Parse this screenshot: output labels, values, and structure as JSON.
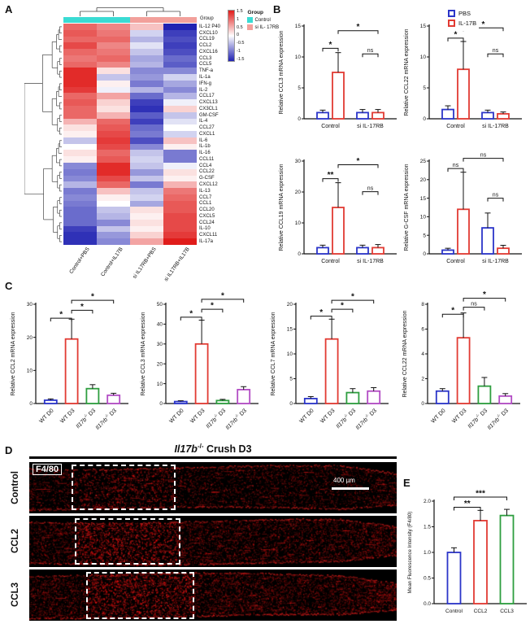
{
  "panels": {
    "a": "A",
    "b": "B",
    "c": "C",
    "d": "D",
    "e": "E"
  },
  "heatmap": {
    "genes": [
      "IL-12 P40",
      "CXCL10",
      "CCL19",
      "CCL2",
      "CXCL16",
      "CCL3",
      "CCL5",
      "TNF-a",
      "IL-1a",
      "IFN-g",
      "IL-2",
      "CCL17",
      "CXCL13",
      "CX3CL1",
      "GM-CSF",
      "IL-4",
      "CCL27",
      "CXCL1",
      "IL-6",
      "IL-1b",
      "IL-16",
      "CCL11",
      "CCL4",
      "CCL22",
      "G-CSF",
      "CXCL12",
      "IL-13",
      "CCL7",
      "CCL1",
      "CCL20",
      "CXCL5",
      "CCL24",
      "IL-10",
      "CXCL11",
      "IL-17a"
    ],
    "columns": [
      "Control+PBS",
      "Control+IL17B",
      "si IL17RB+PBS",
      "si IL17RB+IL17B"
    ],
    "values": [
      [
        1.0,
        0.8,
        0.4,
        -1.5
      ],
      [
        1.1,
        0.9,
        -0.3,
        -1.3
      ],
      [
        1.0,
        1.0,
        -0.5,
        -1.2
      ],
      [
        1.2,
        0.8,
        -0.2,
        -1.3
      ],
      [
        1.0,
        0.9,
        -0.4,
        -1.2
      ],
      [
        0.9,
        1.0,
        -0.6,
        -1.0
      ],
      [
        1.0,
        0.8,
        -0.5,
        -1.1
      ],
      [
        1.4,
        0.2,
        -0.8,
        -0.8
      ],
      [
        1.4,
        -0.4,
        -0.7,
        -0.3
      ],
      [
        1.4,
        0.1,
        -0.9,
        -0.6
      ],
      [
        1.3,
        -0.1,
        -0.5,
        -0.8
      ],
      [
        1.0,
        0.6,
        -1.0,
        -0.5
      ],
      [
        1.1,
        0.3,
        -1.3,
        -0.1
      ],
      [
        1.0,
        0.2,
        -1.4,
        0.3
      ],
      [
        1.0,
        0.5,
        -1.1,
        -0.4
      ],
      [
        0.5,
        1.0,
        -1.3,
        -0.2
      ],
      [
        0.2,
        1.1,
        -1.0,
        0.0
      ],
      [
        0.1,
        1.2,
        -0.9,
        -0.3
      ],
      [
        -0.4,
        1.3,
        -1.2,
        0.4
      ],
      [
        0.0,
        1.2,
        -0.8,
        0.1
      ],
      [
        0.2,
        1.0,
        -0.4,
        -0.9
      ],
      [
        0.1,
        1.1,
        -0.3,
        -0.9
      ],
      [
        -0.8,
        1.4,
        -0.4,
        -0.1
      ],
      [
        -0.9,
        1.4,
        -0.7,
        0.2
      ],
      [
        -0.8,
        1.2,
        -0.4,
        0.1
      ],
      [
        -0.5,
        1.0,
        -0.9,
        0.5
      ],
      [
        -0.9,
        0.4,
        -0.4,
        0.9
      ],
      [
        -0.8,
        0.1,
        -0.3,
        1.0
      ],
      [
        -0.9,
        0.0,
        -0.6,
        1.1
      ],
      [
        -1.0,
        -0.4,
        0.2,
        1.1
      ],
      [
        -1.0,
        -0.5,
        0.1,
        1.2
      ],
      [
        -1.0,
        -0.8,
        0.2,
        1.2
      ],
      [
        -1.3,
        -0.4,
        0.1,
        1.2
      ],
      [
        -1.4,
        -0.7,
        0.3,
        1.3
      ],
      [
        -1.4,
        -0.8,
        0.6,
        1.5
      ]
    ],
    "annotation": {
      "label": "Group",
      "cells": [
        0,
        0,
        1,
        1
      ]
    },
    "legend": {
      "group_title": "Group",
      "groups": [
        {
          "label": "Control",
          "color": "#3adbd3"
        },
        {
          "label": "si IL- 17RB",
          "color": "#f2a09b"
        }
      ],
      "scale_ticks": [
        "1.5",
        "1",
        "0.5",
        "0",
        "-0.5",
        "-1",
        "-1.5"
      ],
      "scale_colors": {
        "max": "#e01c1a",
        "mid": "#ffffff",
        "min": "#2022b2"
      }
    }
  },
  "legendB": {
    "items": [
      {
        "label": "PBS",
        "color": "#2b35c9"
      },
      {
        "label": "IL-17B",
        "color": "#e23b33"
      }
    ]
  },
  "chart_data": [
    {
      "svg": "b1",
      "type": "bar",
      "ylabel": "Relative CCL3 mRNA expression",
      "ylim": [
        0,
        15
      ],
      "yticks": [
        "0",
        "5",
        "10",
        "15"
      ],
      "categories": [
        "Control",
        "si IL-17RB"
      ],
      "series": [
        {
          "name": "PBS",
          "color": "#2b35c9",
          "values": [
            1.0,
            1.0
          ],
          "errors": [
            0.4,
            0.5
          ]
        },
        {
          "name": "IL-17B",
          "color": "#e23b33",
          "values": [
            7.5,
            1.0
          ],
          "errors": [
            3.2,
            0.5
          ]
        }
      ],
      "sig": [
        {
          "a": 0,
          "b": 1,
          "t": "*",
          "y": 0.24
        },
        {
          "a": 2,
          "b": 3,
          "t": "ns",
          "y": 0.3
        },
        {
          "a": 1,
          "b": 3,
          "t": "*",
          "y": 0.05
        }
      ]
    },
    {
      "svg": "b2",
      "type": "bar",
      "ylabel": "Relative CCL22 mRNA expression",
      "ylim": [
        0,
        15
      ],
      "yticks": [
        "0",
        "5",
        "10",
        "15"
      ],
      "categories": [
        "Control",
        "si IL-17RB"
      ],
      "series": [
        {
          "name": "PBS",
          "color": "#2b35c9",
          "values": [
            1.5,
            1.0
          ],
          "errors": [
            0.6,
            0.4
          ]
        },
        {
          "name": "IL-17B",
          "color": "#e23b33",
          "values": [
            8.0,
            0.8
          ],
          "errors": [
            4.5,
            0.3
          ]
        }
      ],
      "sig": [
        {
          "a": 0,
          "b": 1,
          "t": "*",
          "y": 0.13
        },
        {
          "a": 2,
          "b": 3,
          "t": "ns",
          "y": 0.3
        },
        {
          "a": 1,
          "b": 3,
          "t": "*",
          "y": 0.02
        }
      ]
    },
    {
      "svg": "b3",
      "type": "bar",
      "ylabel": "Relative CCL19 mRNA expression",
      "ylim": [
        0,
        30
      ],
      "yticks": [
        "0",
        "10",
        "20",
        "30"
      ],
      "categories": [
        "Control",
        "si IL-17RB"
      ],
      "series": [
        {
          "name": "PBS",
          "color": "#2b35c9",
          "values": [
            2.0,
            2.0
          ],
          "errors": [
            0.8,
            0.8
          ]
        },
        {
          "name": "IL-17B",
          "color": "#e23b33",
          "values": [
            15.0,
            2.0
          ],
          "errors": [
            8.0,
            1.0
          ]
        }
      ],
      "sig": [
        {
          "a": 0,
          "b": 1,
          "t": "**",
          "y": 0.19
        },
        {
          "a": 2,
          "b": 3,
          "t": "ns",
          "y": 0.33
        },
        {
          "a": 1,
          "b": 3,
          "t": "*",
          "y": 0.04
        }
      ]
    },
    {
      "svg": "b4",
      "type": "bar",
      "ylabel": "Relative G-CSF mRNA expression",
      "ylim": [
        0,
        25
      ],
      "yticks": [
        "0",
        "5",
        "10",
        "15",
        "20",
        "25"
      ],
      "categories": [
        "Control",
        "si IL-17RB"
      ],
      "series": [
        {
          "name": "PBS",
          "color": "#2b35c9",
          "values": [
            1.0,
            7.0
          ],
          "errors": [
            0.5,
            4.0
          ]
        },
        {
          "name": "IL-17B",
          "color": "#e23b33",
          "values": [
            12.0,
            1.5
          ],
          "errors": [
            10.0,
            0.8
          ]
        }
      ],
      "sig": [
        {
          "a": 0,
          "b": 1,
          "t": "ns",
          "y": 0.08
        },
        {
          "a": 2,
          "b": 3,
          "t": "ns",
          "y": 0.4
        },
        {
          "a": 1,
          "b": 3,
          "t": "ns",
          "y": -0.03
        }
      ]
    },
    {
      "svg": "c1",
      "type": "bar",
      "rot": true,
      "ylabel": "Relative CCL2 mRNA expression",
      "ylim": [
        0,
        30
      ],
      "yticks": [
        "0",
        "10",
        "20",
        "30"
      ],
      "bars": [
        {
          "label": [
            {
              "t": "WT D0"
            }
          ],
          "color": "#2b35c9",
          "value": 1.0,
          "error": 0.4
        },
        {
          "label": [
            {
              "t": "WT D3"
            }
          ],
          "color": "#e23b33",
          "value": 19.5,
          "error": 6.0
        },
        {
          "label": [
            {
              "t": "Il17b",
              "i": 1
            },
            {
              "t": "-/-",
              "sup": 1
            },
            {
              "t": " D3"
            }
          ],
          "color": "#2e9e3f",
          "value": 4.5,
          "error": 1.2
        },
        {
          "label": [
            {
              "t": "Il17rb",
              "i": 1
            },
            {
              "t": "-/-",
              "sup": 1
            },
            {
              "t": " D3"
            }
          ],
          "color": "#b24bc4",
          "value": 2.5,
          "error": 0.6
        }
      ],
      "sig": [
        {
          "a": 0,
          "b": 1,
          "t": "*",
          "y": 0.14
        },
        {
          "a": 1,
          "b": 2,
          "t": "*",
          "y": 0.06
        },
        {
          "a": 1,
          "b": 3,
          "t": "*",
          "y": -0.04
        }
      ]
    },
    {
      "svg": "c2",
      "type": "bar",
      "rot": true,
      "ylabel": "Relative CCL3 mRNA expression",
      "ylim": [
        0,
        50
      ],
      "yticks": [
        "0",
        "10",
        "20",
        "30",
        "40",
        "50"
      ],
      "bars": [
        {
          "label": [
            {
              "t": "WT D0"
            }
          ],
          "color": "#2b35c9",
          "value": 1.0,
          "error": 0.4
        },
        {
          "label": [
            {
              "t": "WT D3"
            }
          ],
          "color": "#e23b33",
          "value": 30.0,
          "error": 12.0
        },
        {
          "label": [
            {
              "t": "Il17b",
              "i": 1
            },
            {
              "t": "-/-",
              "sup": 1
            },
            {
              "t": " D3"
            }
          ],
          "color": "#2e9e3f",
          "value": 1.5,
          "error": 0.6
        },
        {
          "label": [
            {
              "t": "Il17rb",
              "i": 1
            },
            {
              "t": "-/-",
              "sup": 1
            },
            {
              "t": " D3"
            }
          ],
          "color": "#b24bc4",
          "value": 7.0,
          "error": 1.5
        }
      ],
      "sig": [
        {
          "a": 0,
          "b": 1,
          "t": "*",
          "y": 0.13
        },
        {
          "a": 1,
          "b": 2,
          "t": "*",
          "y": 0.05
        },
        {
          "a": 1,
          "b": 3,
          "t": "*",
          "y": -0.05
        }
      ]
    },
    {
      "svg": "c3",
      "type": "bar",
      "rot": true,
      "ylabel": "Relative CCL7 mRNA expression",
      "ylim": [
        0,
        20
      ],
      "yticks": [
        "0",
        "5",
        "10",
        "15",
        "20"
      ],
      "bars": [
        {
          "label": [
            {
              "t": "WT D0"
            }
          ],
          "color": "#2b35c9",
          "value": 1.0,
          "error": 0.4
        },
        {
          "label": [
            {
              "t": "WT D3"
            }
          ],
          "color": "#e23b33",
          "value": 13.0,
          "error": 4.0
        },
        {
          "label": [
            {
              "t": "Il17b",
              "i": 1
            },
            {
              "t": "-/-",
              "sup": 1
            },
            {
              "t": " D3"
            }
          ],
          "color": "#2e9e3f",
          "value": 2.2,
          "error": 0.8
        },
        {
          "label": [
            {
              "t": "Il17rb",
              "i": 1
            },
            {
              "t": "-/-",
              "sup": 1
            },
            {
              "t": " D3"
            }
          ],
          "color": "#b24bc4",
          "value": 2.5,
          "error": 0.7
        }
      ],
      "sig": [
        {
          "a": 0,
          "b": 1,
          "t": "*",
          "y": 0.12
        },
        {
          "a": 1,
          "b": 2,
          "t": "*",
          "y": 0.05
        },
        {
          "a": 1,
          "b": 3,
          "t": "*",
          "y": -0.04
        }
      ]
    },
    {
      "svg": "c4",
      "type": "bar",
      "rot": true,
      "ylabel": "Relative CCL22 mRNA expression",
      "ylim": [
        0,
        8
      ],
      "yticks": [
        "0",
        "2",
        "4",
        "6",
        "8"
      ],
      "bars": [
        {
          "label": [
            {
              "t": "WT D0"
            }
          ],
          "color": "#2b35c9",
          "value": 1.0,
          "error": 0.2
        },
        {
          "label": [
            {
              "t": "WT D3"
            }
          ],
          "color": "#e23b33",
          "value": 5.3,
          "error": 2.0
        },
        {
          "label": [
            {
              "t": "Il17b",
              "i": 1
            },
            {
              "t": "-/-",
              "sup": 1
            },
            {
              "t": " D3"
            }
          ],
          "color": "#2e9e3f",
          "value": 1.4,
          "error": 0.7
        },
        {
          "label": [
            {
              "t": "Il17rb",
              "i": 1
            },
            {
              "t": "-/-",
              "sup": 1
            },
            {
              "t": " D3"
            }
          ],
          "color": "#b24bc4",
          "value": 0.6,
          "error": 0.2
        }
      ],
      "sig": [
        {
          "a": 0,
          "b": 1,
          "t": "*",
          "y": 0.1
        },
        {
          "a": 1,
          "b": 2,
          "t": "ns",
          "y": 0.03
        },
        {
          "a": 1,
          "b": 3,
          "t": "*",
          "y": -0.06
        }
      ]
    },
    {
      "svg": "e",
      "type": "bar",
      "ylabel": "Mean Fluorescence Intensity (F4/80)",
      "ylim": [
        0,
        2
      ],
      "yticks": [
        "0.0",
        "0.5",
        "1.0",
        "1.5",
        "2.0"
      ],
      "bars": [
        {
          "label": [
            {
              "t": "Control"
            }
          ],
          "color": "#2b35c9",
          "value": 1.0,
          "error": 0.09
        },
        {
          "label": [
            {
              "t": "CCL2"
            }
          ],
          "color": "#e23b33",
          "value": 1.62,
          "error": 0.2
        },
        {
          "label": [
            {
              "t": "CCL3"
            }
          ],
          "color": "#2e9e3f",
          "value": 1.72,
          "error": 0.12
        }
      ],
      "sig": [
        {
          "a": 0,
          "b": 1,
          "t": "**",
          "y": 0.06
        },
        {
          "a": 0,
          "b": 2,
          "t": "***",
          "y": -0.04
        }
      ]
    }
  ],
  "panelD": {
    "title_gene": "Il17b",
    "title_sup": "-/-",
    "title_rest": " Crush D3",
    "stain_label": "F4/80",
    "scale_bar": "400 µm",
    "rows": [
      {
        "label": "Control"
      },
      {
        "label": "CCL2"
      },
      {
        "label": "CCL3"
      }
    ]
  }
}
